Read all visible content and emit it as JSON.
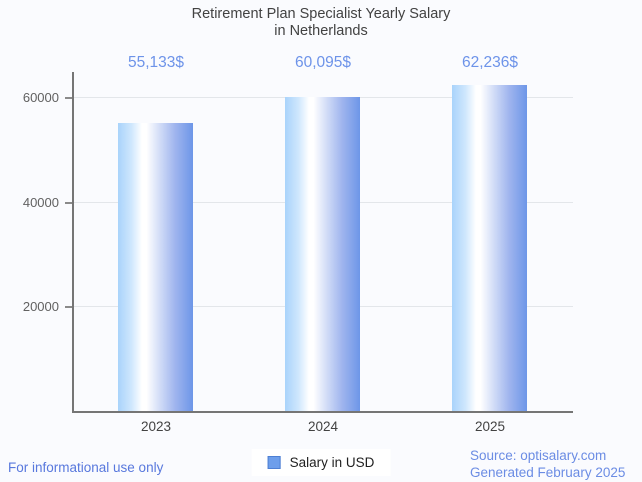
{
  "chart_data": {
    "type": "bar",
    "title": "Retirement Plan Specialist Yearly Salary\nin Netherlands",
    "categories": [
      "2023",
      "2024",
      "2025"
    ],
    "values": [
      55133,
      60095,
      62236
    ],
    "value_labels": [
      "55,133$",
      "60,095$",
      "62,236$"
    ],
    "series_name": "Salary in USD",
    "xlabel": "",
    "ylabel": "",
    "ylim": [
      0,
      64800
    ],
    "yticks": [
      20000,
      40000,
      60000
    ],
    "ytick_labels": [
      "20000",
      "40000",
      "60000"
    ],
    "grid": "horizontal",
    "legend_position": "bottom"
  },
  "legend": {
    "label": "Salary in USD"
  },
  "footer": {
    "disclaimer": "For informational use only",
    "source": "Source: optisalary.com",
    "generated": "Generated February 2025"
  },
  "colors": {
    "background": "#fafbfe",
    "title_text": "#424242",
    "axis_line": "#757575",
    "gridline": "#e3e6ea",
    "ytick_text": "#616161",
    "xtick_text": "#424242",
    "value_label_text": "#6d93e9",
    "bar_edge_blue": "#6d96e8",
    "bar_light_blue": "#a9d3fb",
    "bar_highlight": "#ffffff",
    "legend_swatch": "#6d9eeb",
    "legend_text": "#1f1f1f",
    "disclaimer_text": "#5878dd",
    "source_text": "#6b8ce4"
  }
}
